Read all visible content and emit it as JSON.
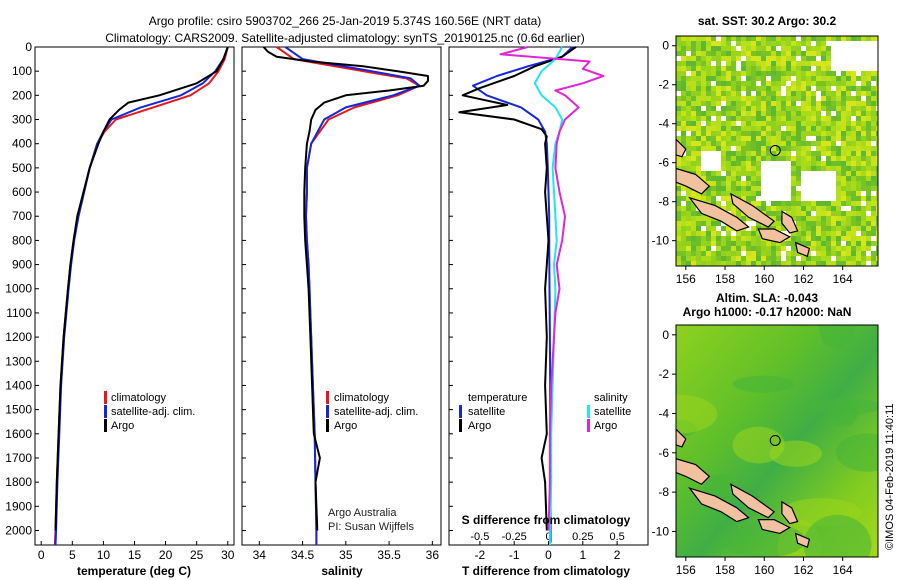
{
  "header": {
    "line1": "Argo profile: csiro 5903702_266 25-Jan-2019 5.374S 160.56E (NRT data)",
    "line2": "Climatology: CARS2009. Satellite-adjusted climatology: synTS_20190125.nc (0.6d earlier)"
  },
  "credit": {
    "line1": "Argo Australia",
    "line2": "PI: Susan Wijffels"
  },
  "watermark": "©IMOS 04-Feb-2019 11:40:11",
  "colors": {
    "climatology": "#e8161b",
    "satellite": "#1428d8",
    "argo": "#000000",
    "satellite_s": "#22e5f0",
    "argo_s": "#e025d8"
  },
  "chart_data": [
    {
      "type": "line",
      "name": "temperature",
      "xlabel": "temperature (deg C)",
      "ylim": [
        2060,
        0
      ],
      "xlim": [
        -1,
        31
      ],
      "xticks": [
        "0",
        "5",
        "10",
        "15",
        "20",
        "25",
        "30"
      ],
      "yticks": [
        "0",
        "100",
        "200",
        "300",
        "400",
        "500",
        "600",
        "700",
        "800",
        "900",
        "1000",
        "1100",
        "1200",
        "1300",
        "1400",
        "1500",
        "1600",
        "1700",
        "1800",
        "1900",
        "2000"
      ],
      "legend": [
        "climatology",
        "satellite-adj. clim.",
        "Argo"
      ],
      "series": [
        {
          "key": "climatology",
          "depth": [
            0,
            50,
            100,
            150,
            200,
            250,
            300,
            350,
            400,
            500,
            600,
            700,
            800,
            900,
            1000,
            1200,
            1400,
            1600,
            1800,
            2000,
            2060
          ],
          "values": [
            30,
            29.5,
            28.5,
            27,
            24,
            18,
            12,
            10.2,
            9,
            7.8,
            6.9,
            6,
            5.2,
            4.7,
            4.3,
            3.6,
            3.1,
            2.8,
            2.5,
            2.3,
            2.2
          ]
        },
        {
          "key": "satellite",
          "depth": [
            0,
            50,
            100,
            150,
            200,
            250,
            300,
            350,
            400,
            500,
            600,
            700,
            800,
            900,
            1000,
            1200,
            1400,
            1600,
            1800,
            2000,
            2060
          ],
          "values": [
            30,
            29.3,
            28,
            26,
            22.5,
            16,
            11.3,
            10,
            9,
            7.8,
            6.9,
            6,
            5.3,
            4.8,
            4.4,
            3.7,
            3.2,
            2.9,
            2.6,
            2.4,
            2.3
          ]
        },
        {
          "key": "argo",
          "depth": [
            0,
            50,
            100,
            150,
            200,
            230,
            260,
            300,
            350,
            400,
            500,
            600,
            700,
            800,
            900,
            1000,
            1200,
            1400,
            1600,
            1800,
            2000
          ],
          "values": [
            30,
            29.3,
            28.2,
            25,
            19,
            14,
            12.5,
            11,
            10,
            9.2,
            7.8,
            6.8,
            5.8,
            5.2,
            4.7,
            4.3,
            3.6,
            3.1,
            2.8,
            2.5,
            2.3
          ]
        }
      ]
    },
    {
      "type": "line",
      "name": "salinity",
      "xlabel": "salinity",
      "ylim": [
        2060,
        0
      ],
      "xlim": [
        33.8,
        36.1
      ],
      "xticks": [
        "34",
        "34.5",
        "35",
        "35.5",
        "36"
      ],
      "legend": [
        "climatology",
        "satellite-adj. clim.",
        "Argo"
      ],
      "series": [
        {
          "key": "climatology",
          "depth": [
            0,
            50,
            100,
            130,
            160,
            200,
            250,
            300,
            400,
            500,
            600,
            700,
            800,
            900,
            1000,
            1200,
            1400,
            1600,
            1800,
            2000,
            2060
          ],
          "values": [
            34.2,
            34.4,
            35.2,
            35.7,
            35.85,
            35.6,
            35.1,
            34.8,
            34.6,
            34.55,
            34.55,
            34.54,
            34.55,
            34.57,
            34.58,
            34.6,
            34.62,
            34.64,
            34.65,
            34.66,
            34.66
          ]
        },
        {
          "key": "satellite",
          "depth": [
            0,
            50,
            100,
            130,
            160,
            200,
            250,
            300,
            400,
            500,
            600,
            700,
            800,
            900,
            1000,
            1200,
            1400,
            1600,
            1800,
            2000,
            2060
          ],
          "values": [
            34.3,
            34.5,
            35.3,
            35.75,
            35.85,
            35.55,
            35.0,
            34.75,
            34.6,
            34.55,
            34.55,
            34.54,
            34.55,
            34.57,
            34.58,
            34.6,
            34.62,
            34.64,
            34.65,
            34.66,
            34.66
          ]
        },
        {
          "key": "argo",
          "depth": [
            0,
            20,
            40,
            60,
            80,
            100,
            120,
            140,
            160,
            180,
            200,
            230,
            260,
            300,
            350,
            400,
            500,
            600,
            700,
            800,
            900,
            1000,
            1200,
            1400,
            1600,
            1700,
            1800,
            1900,
            2000
          ],
          "values": [
            34.05,
            34.1,
            34.2,
            34.6,
            35.2,
            35.6,
            35.95,
            35.95,
            35.9,
            35.5,
            35.0,
            34.75,
            34.65,
            34.6,
            34.58,
            34.55,
            34.53,
            34.52,
            34.52,
            34.53,
            34.55,
            34.57,
            34.59,
            34.61,
            34.63,
            34.7,
            34.65,
            34.66,
            34.67
          ]
        }
      ]
    },
    {
      "type": "line",
      "name": "difference",
      "xlabel": "T difference from climatology",
      "xlabel_top": "S difference from climatology",
      "ylim": [
        2060,
        0
      ],
      "xlim": [
        -2.9,
        2.9
      ],
      "xticks": [
        "-2",
        "-1",
        "0",
        "1",
        "2"
      ],
      "xticks_top": [
        "-0.5",
        "-0.25",
        "0",
        "0.25",
        "0.5"
      ],
      "legend_left_title": "temperature",
      "legend_left": [
        "satellite",
        "Argo"
      ],
      "legend_right_title": "salinity",
      "legend_right": [
        "satellite",
        "Argo"
      ],
      "series": [
        {
          "key": "satellite",
          "depth": [
            0,
            40,
            80,
            120,
            160,
            200,
            250,
            300,
            350,
            400,
            500,
            600,
            700,
            800,
            1000,
            1200,
            1400,
            1600,
            1800,
            2000,
            2050
          ],
          "values": [
            0.7,
            0.4,
            -0.6,
            -1.5,
            -2.2,
            -1.8,
            -0.8,
            -0.3,
            -0.1,
            -0.05,
            -0.02,
            0,
            0.02,
            0.02,
            0.03,
            0.04,
            0.05,
            0.05,
            0.06,
            0.06,
            0.06
          ]
        },
        {
          "key": "argo",
          "depth": [
            0,
            40,
            80,
            120,
            170,
            200,
            240,
            270,
            300,
            340,
            370,
            400,
            500,
            600,
            700,
            800,
            1000,
            1200,
            1400,
            1600,
            1700,
            1800,
            2000
          ],
          "values": [
            0.8,
            0.4,
            -0.4,
            -1.0,
            -2.0,
            -2.5,
            -1.2,
            -2.6,
            -1.0,
            -0.2,
            -0.05,
            -0.1,
            -0.05,
            -0.1,
            -0.05,
            0,
            -0.1,
            -0.05,
            -0.1,
            -0.05,
            -0.2,
            -0.1,
            -0.05
          ]
        },
        {
          "key": "satellite_s",
          "depth": [
            0,
            50,
            100,
            150,
            200,
            250,
            300,
            350,
            400,
            500,
            600,
            700,
            800,
            900,
            1000,
            1200,
            1400,
            1600,
            1800,
            2000,
            2060
          ],
          "values": [
            0.1,
            0.05,
            -0.05,
            -0.1,
            -0.05,
            0.05,
            0.1,
            0.08,
            0.05,
            0.03,
            0.04,
            0.05,
            0.06,
            0.04,
            0.05,
            0.04,
            0.03,
            0.02,
            0.02,
            0.01,
            0.01
          ]
        },
        {
          "key": "argo_s",
          "depth": [
            0,
            30,
            60,
            90,
            120,
            150,
            180,
            200,
            250,
            300,
            350,
            400,
            500,
            600,
            700,
            800,
            900,
            1000,
            1100,
            1200,
            1400,
            1600,
            1800,
            2000
          ],
          "values": [
            -0.15,
            -0.35,
            0.3,
            0.25,
            0.4,
            0.25,
            0.05,
            0.12,
            0.22,
            0.12,
            0.08,
            0.06,
            0.05,
            0.08,
            0.12,
            0.1,
            0.06,
            0.08,
            0.05,
            0.04,
            0.02,
            0.01,
            0.01,
            0
          ]
        }
      ]
    },
    {
      "type": "heatmap",
      "name": "sst-map",
      "title": "sat. SST: 30.2 Argo: 30.2",
      "xlim": [
        155.5,
        165.8
      ],
      "ylim": [
        -11.3,
        0.5
      ],
      "xticks": [
        "156",
        "158",
        "160",
        "162",
        "164"
      ],
      "yticks": [
        "0",
        "-2",
        "-4",
        "-6",
        "-8",
        "-10"
      ],
      "argo_position": {
        "lon": 160.56,
        "lat": -5.374
      }
    },
    {
      "type": "heatmap",
      "name": "sla-map",
      "title": "Altim. SLA: -0.043",
      "subtitle": "Argo h1000: -0.17 h2000: NaN",
      "xlim": [
        155.5,
        165.8
      ],
      "ylim": [
        -11.3,
        0.5
      ],
      "xticks": [
        "156",
        "158",
        "160",
        "162",
        "164"
      ],
      "yticks": [
        "0",
        "-2",
        "-4",
        "-6",
        "-8",
        "-10"
      ],
      "argo_position": {
        "lon": 160.56,
        "lat": -5.374
      }
    }
  ]
}
